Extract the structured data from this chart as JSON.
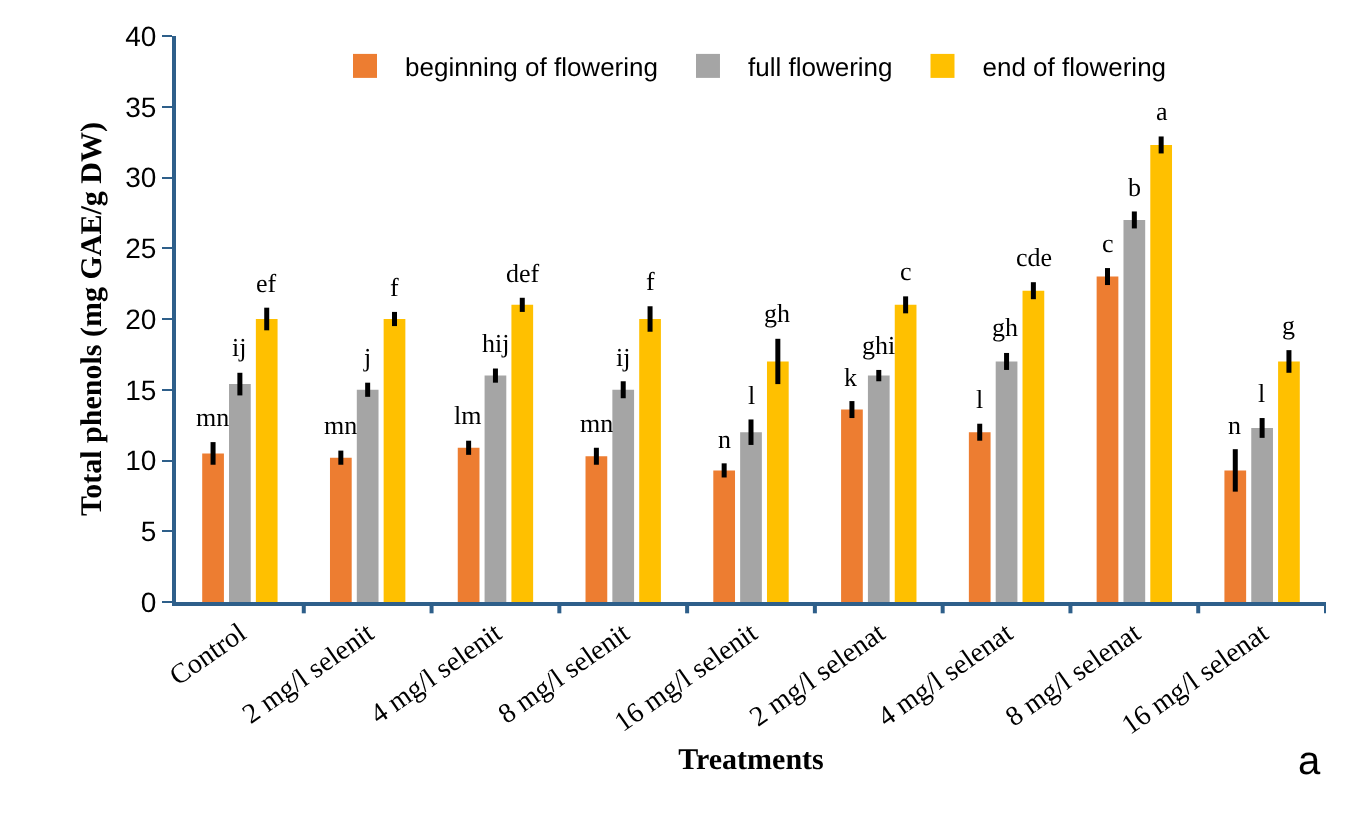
{
  "chart_data": {
    "type": "bar",
    "xlabel": "Treatments",
    "ylabel": "Total phenols (mg GAE/g DW)",
    "categories": [
      "Control",
      "2 mg/l selenit",
      "4 mg/l selenit",
      "8 mg/l selenit",
      "16 mg/l selenit",
      "2 mg/l selenat",
      "4 mg/l selenat",
      "8 mg/l selenat",
      "16 mg/l selenat"
    ],
    "series": [
      {
        "name": "beginning of flowering",
        "color": "#ed7d31",
        "values": [
          10.5,
          10.2,
          10.9,
          10.3,
          9.3,
          13.6,
          12,
          23,
          9.3
        ],
        "errors": [
          0.8,
          0.5,
          0.5,
          0.6,
          0.5,
          0.6,
          0.6,
          0.6,
          1.5
        ]
      },
      {
        "name": "full flowering",
        "color": "#a5a5a5",
        "values": [
          15.4,
          15,
          16,
          15,
          12,
          16,
          17,
          27,
          12.3
        ],
        "errors": [
          0.8,
          0.5,
          0.5,
          0.6,
          0.9,
          0.4,
          0.6,
          0.6,
          0.7
        ]
      },
      {
        "name": "end of flowering",
        "color": "#ffc000",
        "values": [
          20,
          20,
          21,
          20,
          17,
          21,
          22,
          32.3,
          17
        ],
        "errors": [
          0.8,
          0.5,
          0.5,
          0.9,
          1.6,
          0.6,
          0.6,
          0.6,
          0.8
        ]
      }
    ],
    "ylim": [
      0,
      40
    ],
    "yticks": [
      0,
      5,
      10,
      15,
      20,
      25,
      30,
      35,
      40
    ],
    "grid": false,
    "legend": "top",
    "annotations": [
      "mn",
      "ij",
      "ef",
      "mn",
      "j",
      "f",
      "lm",
      "hij",
      "def",
      "mn",
      "ij",
      "f",
      "n",
      "l",
      "gh",
      "k",
      "ghi",
      "c",
      "l",
      "gh",
      "cde",
      "c",
      "b",
      "a",
      "n",
      "l",
      "g",
      "a"
    ]
  }
}
